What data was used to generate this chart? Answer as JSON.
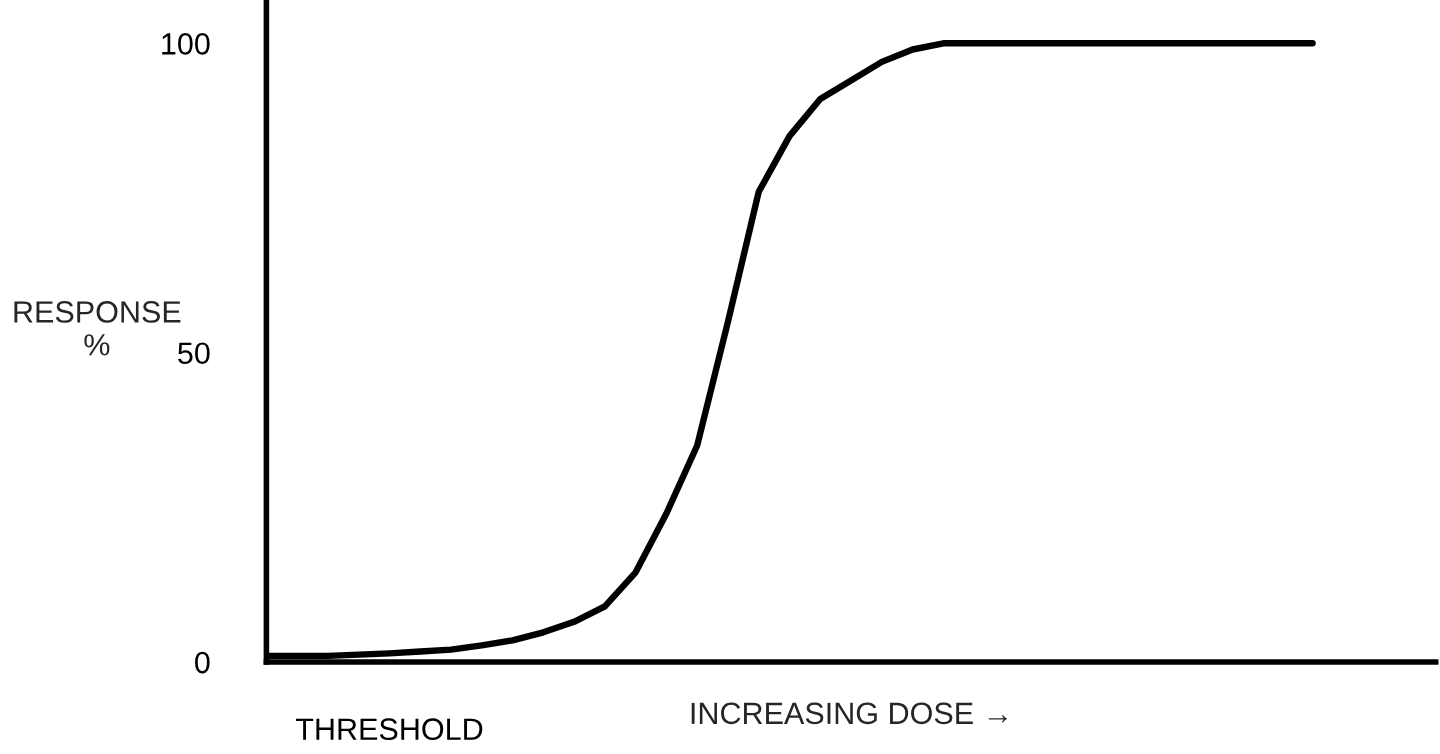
{
  "chart_data": {
    "type": "line",
    "xlabel": "INCREASING DOSE →",
    "ylabel": "RESPONSE\n%",
    "categories": [
      null,
      null,
      null,
      null,
      "THRESHOLD",
      null,
      null,
      null,
      null,
      null,
      null,
      null,
      null,
      null,
      null,
      null,
      null,
      null,
      null,
      null,
      null,
      null,
      null,
      null,
      null,
      null,
      null,
      null,
      null,
      null,
      null,
      null,
      null,
      null,
      null,
      null,
      null,
      null,
      null
    ],
    "series": [
      {
        "color": "#000000",
        "values": [
          1,
          1,
          1,
          1.2,
          1.4,
          1.7,
          2,
          2.7,
          3.5,
          4.8,
          6.5,
          9,
          14.5,
          24,
          35,
          55,
          76,
          85,
          91,
          94,
          97,
          99,
          100,
          100,
          100,
          100,
          100,
          100,
          100,
          100,
          100,
          100,
          100,
          100,
          100,
          null,
          null,
          null,
          null
        ]
      }
    ],
    "ylim": [
      0,
      107
    ],
    "yticks": [
      0,
      50,
      100
    ],
    "grid": false,
    "legend": false,
    "marker": "none",
    "line_style": "solid"
  }
}
